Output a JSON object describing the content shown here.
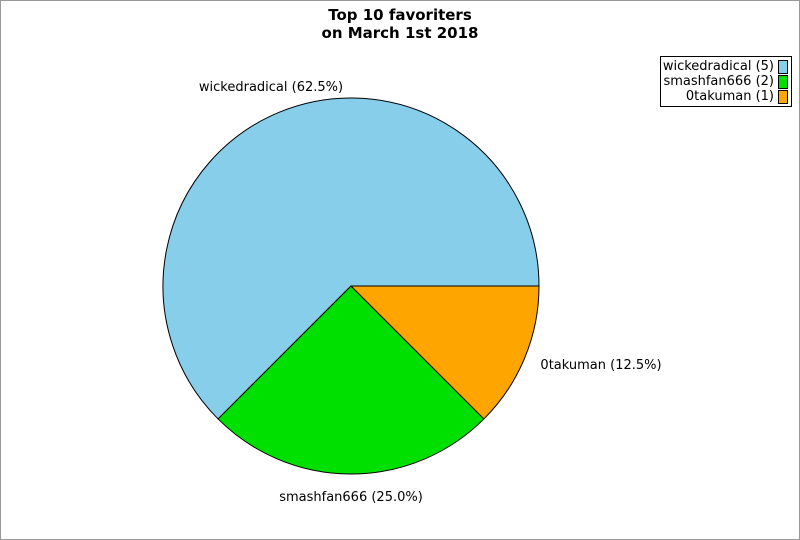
{
  "title": {
    "line1": "Top 10 favoriters",
    "line2": "on March 1st 2018"
  },
  "chart_data": {
    "type": "pie",
    "title": "Top 10 favoriters on March 1st 2018",
    "direction": "counterclockwise",
    "start_angle_deg": 0,
    "legend_position": "top-right",
    "total": 8,
    "slices": [
      {
        "label": "wickedradical",
        "count": 5,
        "percent": 62.5,
        "color": "#87CEEB",
        "callout": "wickedradical (62.5%)"
      },
      {
        "label": "smashfan666",
        "count": 2,
        "percent": 25.0,
        "color": "#00E000",
        "callout": "smashfan666 (25.0%)"
      },
      {
        "label": "0takuman",
        "count": 1,
        "percent": 12.5,
        "color": "#FFA500",
        "callout": "0takuman (12.5%)"
      }
    ]
  },
  "legend": {
    "items": [
      {
        "label": "wickedradical (5)",
        "color": "#87CEEB"
      },
      {
        "label": "smashfan666 (2)",
        "color": "#00E000"
      },
      {
        "label": "0takuman (1)",
        "color": "#FFA500"
      }
    ]
  },
  "frame_color": "#999999"
}
